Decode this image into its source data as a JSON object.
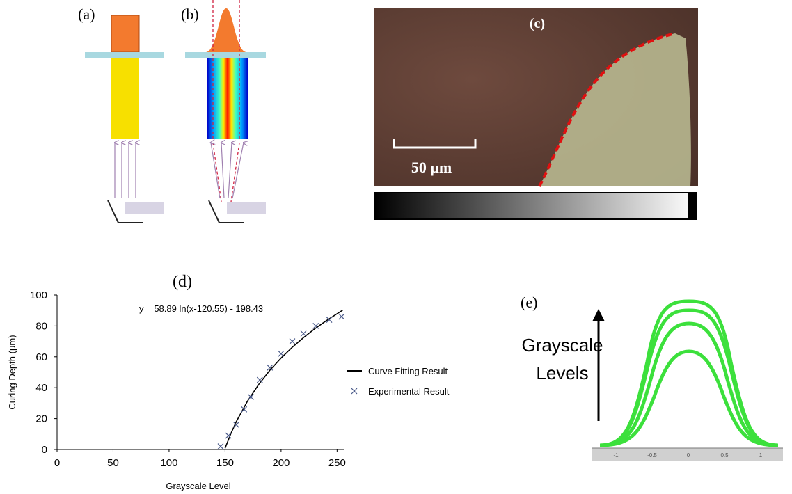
{
  "panels": {
    "a": {
      "label": "(a)"
    },
    "b": {
      "label": "(b)"
    },
    "c": {
      "label": "(c)",
      "scale_bar": "50 μm"
    },
    "e": {
      "label": "(e)",
      "annotation": [
        "Grayscale",
        "Levels"
      ],
      "axis_labels": [
        "-1",
        "-0.5",
        "0",
        "0.5",
        "1"
      ]
    }
  },
  "chart_data": {
    "type": "line-scatter",
    "title": "(d)",
    "annotation": "y = 58.89 ln(x-120.55) - 198.43",
    "x_label": "Grayscale Level",
    "y_label": "Curing Depth (μm)",
    "xlim": [
      0,
      256
    ],
    "ylim": [
      0,
      100
    ],
    "xticks": [
      0,
      50,
      100,
      150,
      200,
      250
    ],
    "yticks": [
      0,
      20,
      40,
      60,
      80,
      100
    ],
    "series": [
      {
        "name": "Curve Fitting Result",
        "color": "#000000",
        "kind": "line",
        "x": [
          150,
          155,
          160,
          170,
          180,
          190,
          200,
          210,
          220,
          230,
          240,
          255
        ],
        "values": [
          0.8,
          10.0,
          18.0,
          31.3,
          42.1,
          51.3,
          59.2,
          66.2,
          72.4,
          78.1,
          83.2,
          90.2
        ]
      },
      {
        "name": "Experimental Result",
        "color": "#4a5a8a",
        "kind": "scatter",
        "x": [
          146,
          153,
          160,
          167,
          173,
          181,
          190,
          200,
          210,
          220,
          231,
          243,
          254
        ],
        "values": [
          2,
          9,
          16,
          26,
          34,
          45,
          53,
          62,
          70,
          75,
          80,
          84,
          86
        ]
      }
    ]
  }
}
